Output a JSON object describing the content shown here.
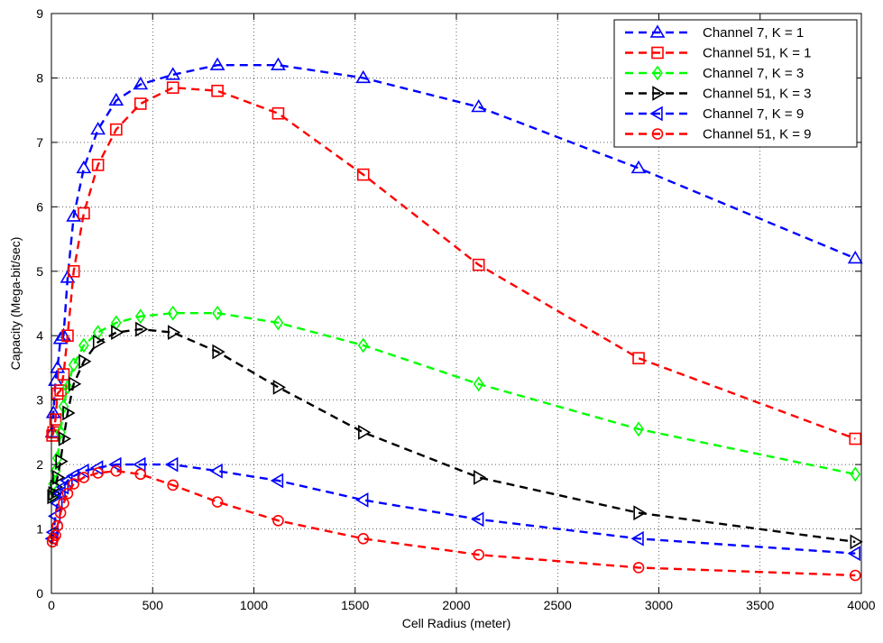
{
  "chart_data": {
    "type": "line",
    "title": "",
    "xlabel": "Cell Radius (meter)",
    "ylabel": "Capacity (Mega-bit/sec)",
    "xlim": [
      0,
      4000
    ],
    "ylim": [
      0,
      9
    ],
    "xticks": [
      0,
      500,
      1000,
      1500,
      2000,
      2500,
      3000,
      3500,
      4000
    ],
    "yticks": [
      0,
      1,
      2,
      3,
      4,
      5,
      6,
      7,
      8,
      9
    ],
    "grid": true,
    "legend": "top-right",
    "series": [
      {
        "name": "Channel 7, K = 1",
        "color": "#0000ff",
        "marker": "triangle-up",
        "x": [
          5,
          10,
          20,
          30,
          45,
          60,
          80,
          110,
          160,
          230,
          320,
          440,
          600,
          820,
          1120,
          1540,
          2110,
          2900,
          3970
        ],
        "y": [
          2.5,
          2.8,
          3.3,
          3.5,
          3.95,
          4.0,
          4.9,
          5.85,
          6.6,
          7.2,
          7.65,
          7.9,
          8.05,
          8.2,
          8.2,
          8.0,
          7.55,
          6.6,
          5.2
        ]
      },
      {
        "name": "Channel 51, K = 1",
        "color": "#ff0000",
        "marker": "square",
        "x": [
          5,
          10,
          20,
          30,
          45,
          60,
          80,
          110,
          160,
          230,
          320,
          440,
          600,
          820,
          1120,
          1540,
          2110,
          2900,
          3970
        ],
        "y": [
          2.45,
          2.5,
          2.7,
          3.1,
          3.15,
          3.4,
          4.0,
          5.0,
          5.9,
          6.65,
          7.2,
          7.6,
          7.85,
          7.8,
          7.45,
          6.5,
          5.1,
          3.65,
          2.4
        ]
      },
      {
        "name": "Channel 7, K = 3",
        "color": "#00ff00",
        "marker": "diamond",
        "x": [
          5,
          10,
          20,
          30,
          45,
          60,
          80,
          110,
          160,
          230,
          320,
          440,
          600,
          820,
          1120,
          1540,
          2110,
          2900,
          3970
        ],
        "y": [
          1.5,
          1.7,
          1.9,
          2.1,
          2.5,
          2.9,
          3.2,
          3.55,
          3.85,
          4.05,
          4.2,
          4.3,
          4.35,
          4.35,
          4.2,
          3.85,
          3.25,
          2.55,
          1.85
        ]
      },
      {
        "name": "Channel 51, K = 3",
        "color": "#000000",
        "marker": "triangle-right",
        "x": [
          5,
          10,
          20,
          30,
          45,
          60,
          80,
          110,
          160,
          230,
          320,
          440,
          600,
          820,
          1120,
          1540,
          2110,
          2900,
          3970
        ],
        "y": [
          1.5,
          1.55,
          1.65,
          1.8,
          2.05,
          2.4,
          2.8,
          3.25,
          3.6,
          3.9,
          4.05,
          4.1,
          4.05,
          3.75,
          3.2,
          2.5,
          1.8,
          1.25,
          0.8
        ]
      },
      {
        "name": "Channel 7, K = 9",
        "color": "#0000ff",
        "marker": "triangle-left",
        "x": [
          5,
          10,
          20,
          30,
          45,
          60,
          80,
          110,
          160,
          230,
          320,
          440,
          600,
          820,
          1120,
          1540,
          2110,
          2900,
          3970
        ],
        "y": [
          0.85,
          0.95,
          1.2,
          1.4,
          1.55,
          1.65,
          1.75,
          1.82,
          1.9,
          1.95,
          2.0,
          2.0,
          2.0,
          1.9,
          1.75,
          1.45,
          1.15,
          0.85,
          0.62
        ]
      },
      {
        "name": "Channel 51, K = 9",
        "color": "#ff0000",
        "marker": "circle",
        "x": [
          5,
          10,
          20,
          30,
          45,
          60,
          80,
          110,
          160,
          230,
          320,
          440,
          600,
          820,
          1120,
          1540,
          2110,
          2900,
          3970
        ],
        "y": [
          0.8,
          0.85,
          0.9,
          1.05,
          1.25,
          1.4,
          1.55,
          1.7,
          1.8,
          1.87,
          1.9,
          1.85,
          1.68,
          1.42,
          1.13,
          0.85,
          0.6,
          0.4,
          0.28
        ]
      }
    ]
  }
}
